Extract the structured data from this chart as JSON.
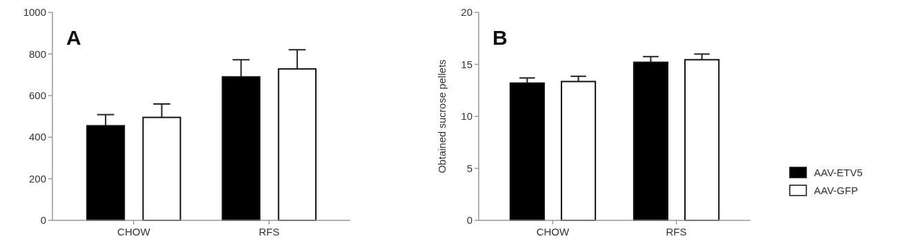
{
  "chart_data": [
    {
      "type": "bar",
      "categories": [
        "CHOW",
        "RFS"
      ],
      "annotations": [
        "A"
      ],
      "ylim": [
        0,
        1000
      ],
      "yticks": [
        0,
        200,
        400,
        600,
        800,
        1000
      ],
      "legend": false,
      "series": [
        {
          "color": "#000000",
          "values": [
            455,
            690
          ],
          "errors": [
            [
              455,
              508
            ],
            [
              690,
              772
            ]
          ]
        },
        {
          "color": "#ffffff",
          "values": [
            495,
            728
          ],
          "errors": [
            [
              495,
              560
            ],
            [
              728,
              820
            ]
          ]
        }
      ]
    },
    {
      "type": "bar",
      "categories": [
        "CHOW",
        "RFS"
      ],
      "annotations": [
        "B"
      ],
      "ylabel": "Obtained sucrose pellets",
      "ylim": [
        0,
        20
      ],
      "yticks": [
        0,
        5,
        10,
        15,
        20
      ],
      "legend": "right",
      "series": [
        {
          "name": "AAV-ETV5",
          "color": "#000000",
          "values": [
            13.2,
            15.2
          ],
          "errors": [
            [
              13.2,
              13.7
            ],
            [
              15.2,
              15.75
            ]
          ]
        },
        {
          "name": "AAV-GFP",
          "color": "#ffffff",
          "values": [
            13.35,
            15.45
          ],
          "errors": [
            [
              13.35,
              13.85
            ],
            [
              15.45,
              16.0
            ]
          ]
        }
      ]
    }
  ]
}
